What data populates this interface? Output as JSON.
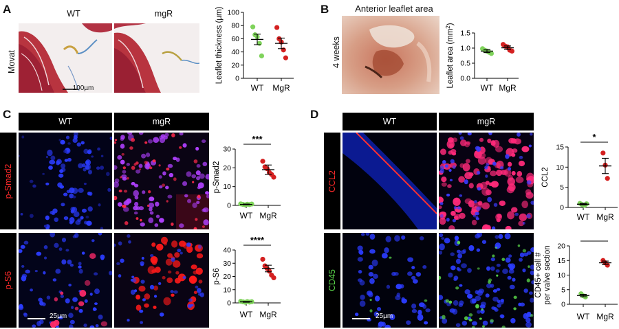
{
  "panels": {
    "A": {
      "label": "A",
      "row_label": "Movat",
      "wt_title": "WT",
      "mgr_title": "mgR",
      "scale_text": "100µm"
    },
    "B": {
      "label": "B",
      "title": "Anterior leaflet area",
      "row_label": "4 weeks"
    },
    "C": {
      "label": "C",
      "wt_header": "WT",
      "mgr_header": "mgR",
      "row1_label": "p-Smad2",
      "row2_label": "p-S6",
      "scale_text": "25µm"
    },
    "D": {
      "label": "D",
      "wt_header": "WT",
      "mgr_header": "mgR",
      "row1_label": "CCL2",
      "row2_label": "CD45",
      "scale_text": "25µm"
    }
  },
  "colors": {
    "wt": "#7fd35b",
    "mgr": "#d42020",
    "stain_red": "#ff2a2a",
    "stain_green": "#5bd94b"
  },
  "chart_data": [
    {
      "id": "A-thickness",
      "type": "scatter",
      "ylabel": "Leaflet thickness (µm)",
      "ylim": [
        0,
        100
      ],
      "yticks": [
        "0",
        "20",
        "40",
        "60",
        "80",
        "100"
      ],
      "categories": [
        "WT",
        "MgR"
      ],
      "series": [
        {
          "category": "WT",
          "points": [
            78,
            66,
            63,
            53,
            34
          ],
          "mean": 59,
          "error": 8
        },
        {
          "category": "MgR",
          "points": [
            77,
            60,
            55,
            43,
            31
          ],
          "mean": 53,
          "error": 8
        }
      ]
    },
    {
      "id": "B-area",
      "type": "scatter",
      "ylabel": "Leaflet area (mm²)",
      "ylim": [
        0,
        1.5
      ],
      "yticks": [
        "0.0",
        "0.5",
        "1.0",
        "1.5"
      ],
      "categories": [
        "WT",
        "MgR"
      ],
      "series": [
        {
          "category": "WT",
          "points": [
            0.98,
            0.93,
            0.9,
            0.86,
            0.82
          ],
          "mean": 0.9,
          "error": 0.05
        },
        {
          "category": "MgR",
          "points": [
            1.12,
            1.06,
            1.04,
            0.93,
            0.9
          ],
          "mean": 1.01,
          "error": 0.06
        }
      ]
    },
    {
      "id": "C-pSmad2",
      "type": "scatter",
      "ylabel": "p-Smad2",
      "ylim": [
        0,
        30
      ],
      "yticks": [
        "0",
        "10",
        "20",
        "30"
      ],
      "categories": [
        "WT",
        "MgR"
      ],
      "significance": "***",
      "series": [
        {
          "category": "WT",
          "points": [
            0.8,
            0.5,
            0.3,
            0.6,
            0.4,
            0.7
          ],
          "mean": 0.5,
          "error": 0.2
        },
        {
          "category": "MgR",
          "points": [
            23.5,
            20.5,
            19.5,
            17.5,
            16.5,
            15
          ],
          "mean": 19,
          "error": 2.5
        }
      ]
    },
    {
      "id": "C-pS6",
      "type": "scatter",
      "ylabel": "p-S6",
      "ylim": [
        0,
        40
      ],
      "yticks": [
        "0",
        "10",
        "20",
        "30",
        "40"
      ],
      "categories": [
        "WT",
        "MgR"
      ],
      "significance": "****",
      "series": [
        {
          "category": "WT",
          "points": [
            1.2,
            0.8,
            0.5,
            1.0,
            0.6,
            0.9
          ],
          "mean": 0.8,
          "error": 0.3
        },
        {
          "category": "MgR",
          "points": [
            33,
            28,
            26,
            24,
            21,
            19
          ],
          "mean": 26,
          "error": 2.5
        }
      ]
    },
    {
      "id": "D-CCL2",
      "type": "scatter",
      "ylabel": "CCL2",
      "ylim": [
        0,
        15
      ],
      "yticks": [
        "0",
        "5",
        "10",
        "15"
      ],
      "categories": [
        "WT",
        "MgR"
      ],
      "significance": "*",
      "series": [
        {
          "category": "WT",
          "points": [
            1.0,
            0.7,
            0.5,
            0.9
          ],
          "mean": 0.8,
          "error": 0.2
        },
        {
          "category": "MgR",
          "points": [
            13.5,
            10.5,
            7.2
          ],
          "mean": 10.3,
          "error": 1.9
        }
      ]
    },
    {
      "id": "D-CD45",
      "type": "scatter",
      "ylabel": "CD45+ cell #\nper valve section",
      "ylim": [
        0,
        20
      ],
      "yticks": [
        "0",
        "5",
        "10",
        "15",
        "20"
      ],
      "categories": [
        "WT",
        "MgR"
      ],
      "significance": "***",
      "series": [
        {
          "category": "WT",
          "points": [
            3.6,
            2.9,
            2.5
          ],
          "mean": 3.0,
          "error": 0.4
        },
        {
          "category": "MgR",
          "points": [
            15.0,
            14.2,
            13.4
          ],
          "mean": 14.2,
          "error": 0.6
        }
      ]
    }
  ]
}
